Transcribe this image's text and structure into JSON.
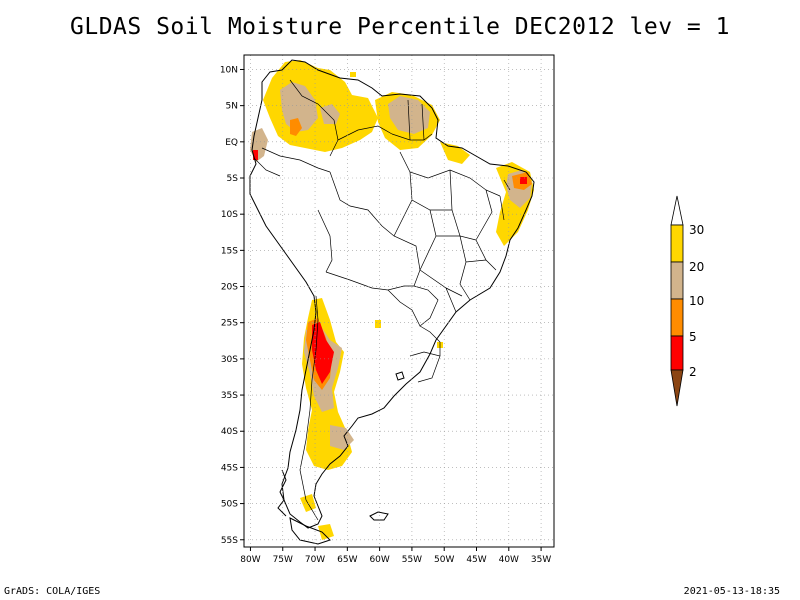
{
  "title": "GLDAS Soil Moisture Percentile DEC2012 lev = 1",
  "footer": {
    "left": "GrADS: COLA/IGES",
    "right": "2021-05-13-18:35"
  },
  "axes": {
    "lon_labels": [
      "80W",
      "75W",
      "70W",
      "65W",
      "60W",
      "55W",
      "50W",
      "45W",
      "40W",
      "35W"
    ],
    "lon_values": [
      -80,
      -75,
      -70,
      -65,
      -60,
      -55,
      -50,
      -45,
      -40,
      -35
    ],
    "lat_labels": [
      "10N",
      "5N",
      "EQ",
      "5S",
      "10S",
      "15S",
      "20S",
      "25S",
      "30S",
      "35S",
      "40S",
      "45S",
      "50S",
      "55S"
    ],
    "lat_values": [
      10,
      5,
      0,
      -5,
      -10,
      -15,
      -20,
      -25,
      -30,
      -35,
      -40,
      -45,
      -50,
      -55
    ],
    "lon_range": [
      -81,
      -33
    ],
    "lat_range": [
      -56,
      12
    ],
    "grid": true
  },
  "legend": {
    "labels": [
      "30",
      "20",
      "10",
      "5",
      "2"
    ],
    "colors": {
      "above30": "#ffffff",
      "band20_30": "#ffd700",
      "band10_20": "#d2b48c",
      "band5_10": "#ff8c00",
      "band2_5": "#ff0000",
      "below2": "#8b4513"
    }
  }
}
